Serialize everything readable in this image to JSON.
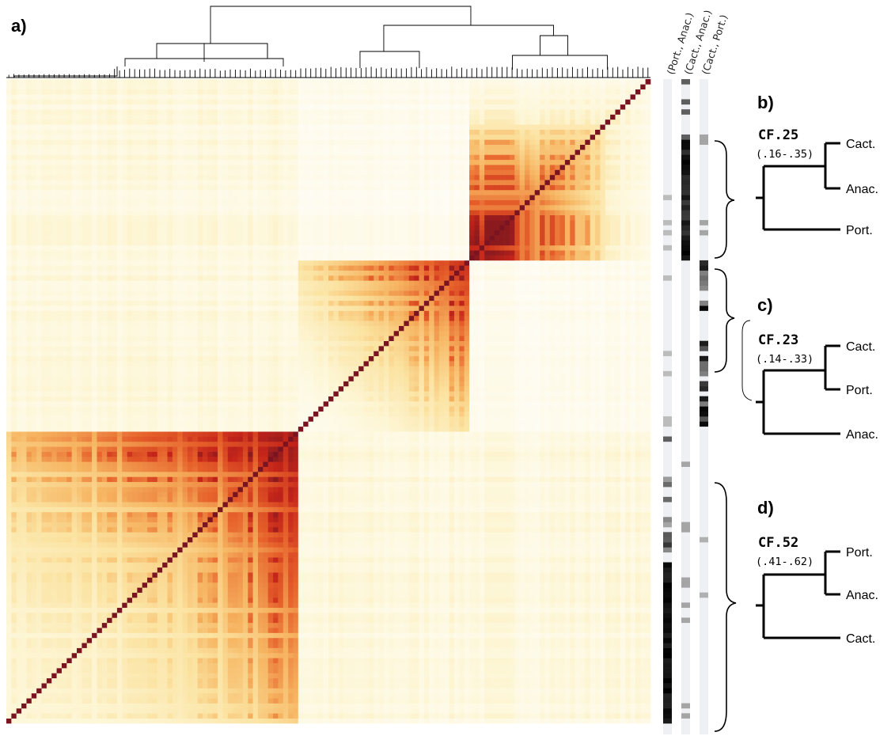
{
  "panels": {
    "a": "a)",
    "b": "b)",
    "c": "c)",
    "d": "d)"
  },
  "columns": [
    "(Port., Anac.)",
    "(Cact., Anac.)",
    "(Cact., Port.)"
  ],
  "trees": [
    {
      "id": "b",
      "cf": "CF.25",
      "ci": "(.16-.35)",
      "taxa": [
        "Cact.",
        "Anac.",
        "Port."
      ]
    },
    {
      "id": "c",
      "cf": "CF.23",
      "ci": "(.14-.33)",
      "taxa": [
        "Cact.",
        "Port.",
        "Anac."
      ]
    },
    {
      "id": "d",
      "cf": "CF.52",
      "ci": "(.41-.62)",
      "taxa": [
        "Port.",
        "Anac.",
        "Cact."
      ]
    }
  ],
  "heatmap": {
    "palette": [
      "#ffffff",
      "#fdf6d6",
      "#fbe3a1",
      "#f6b35f",
      "#e6602a",
      "#c42419",
      "#8b1a1e"
    ],
    "diagonal_color": "#7a1420"
  }
}
